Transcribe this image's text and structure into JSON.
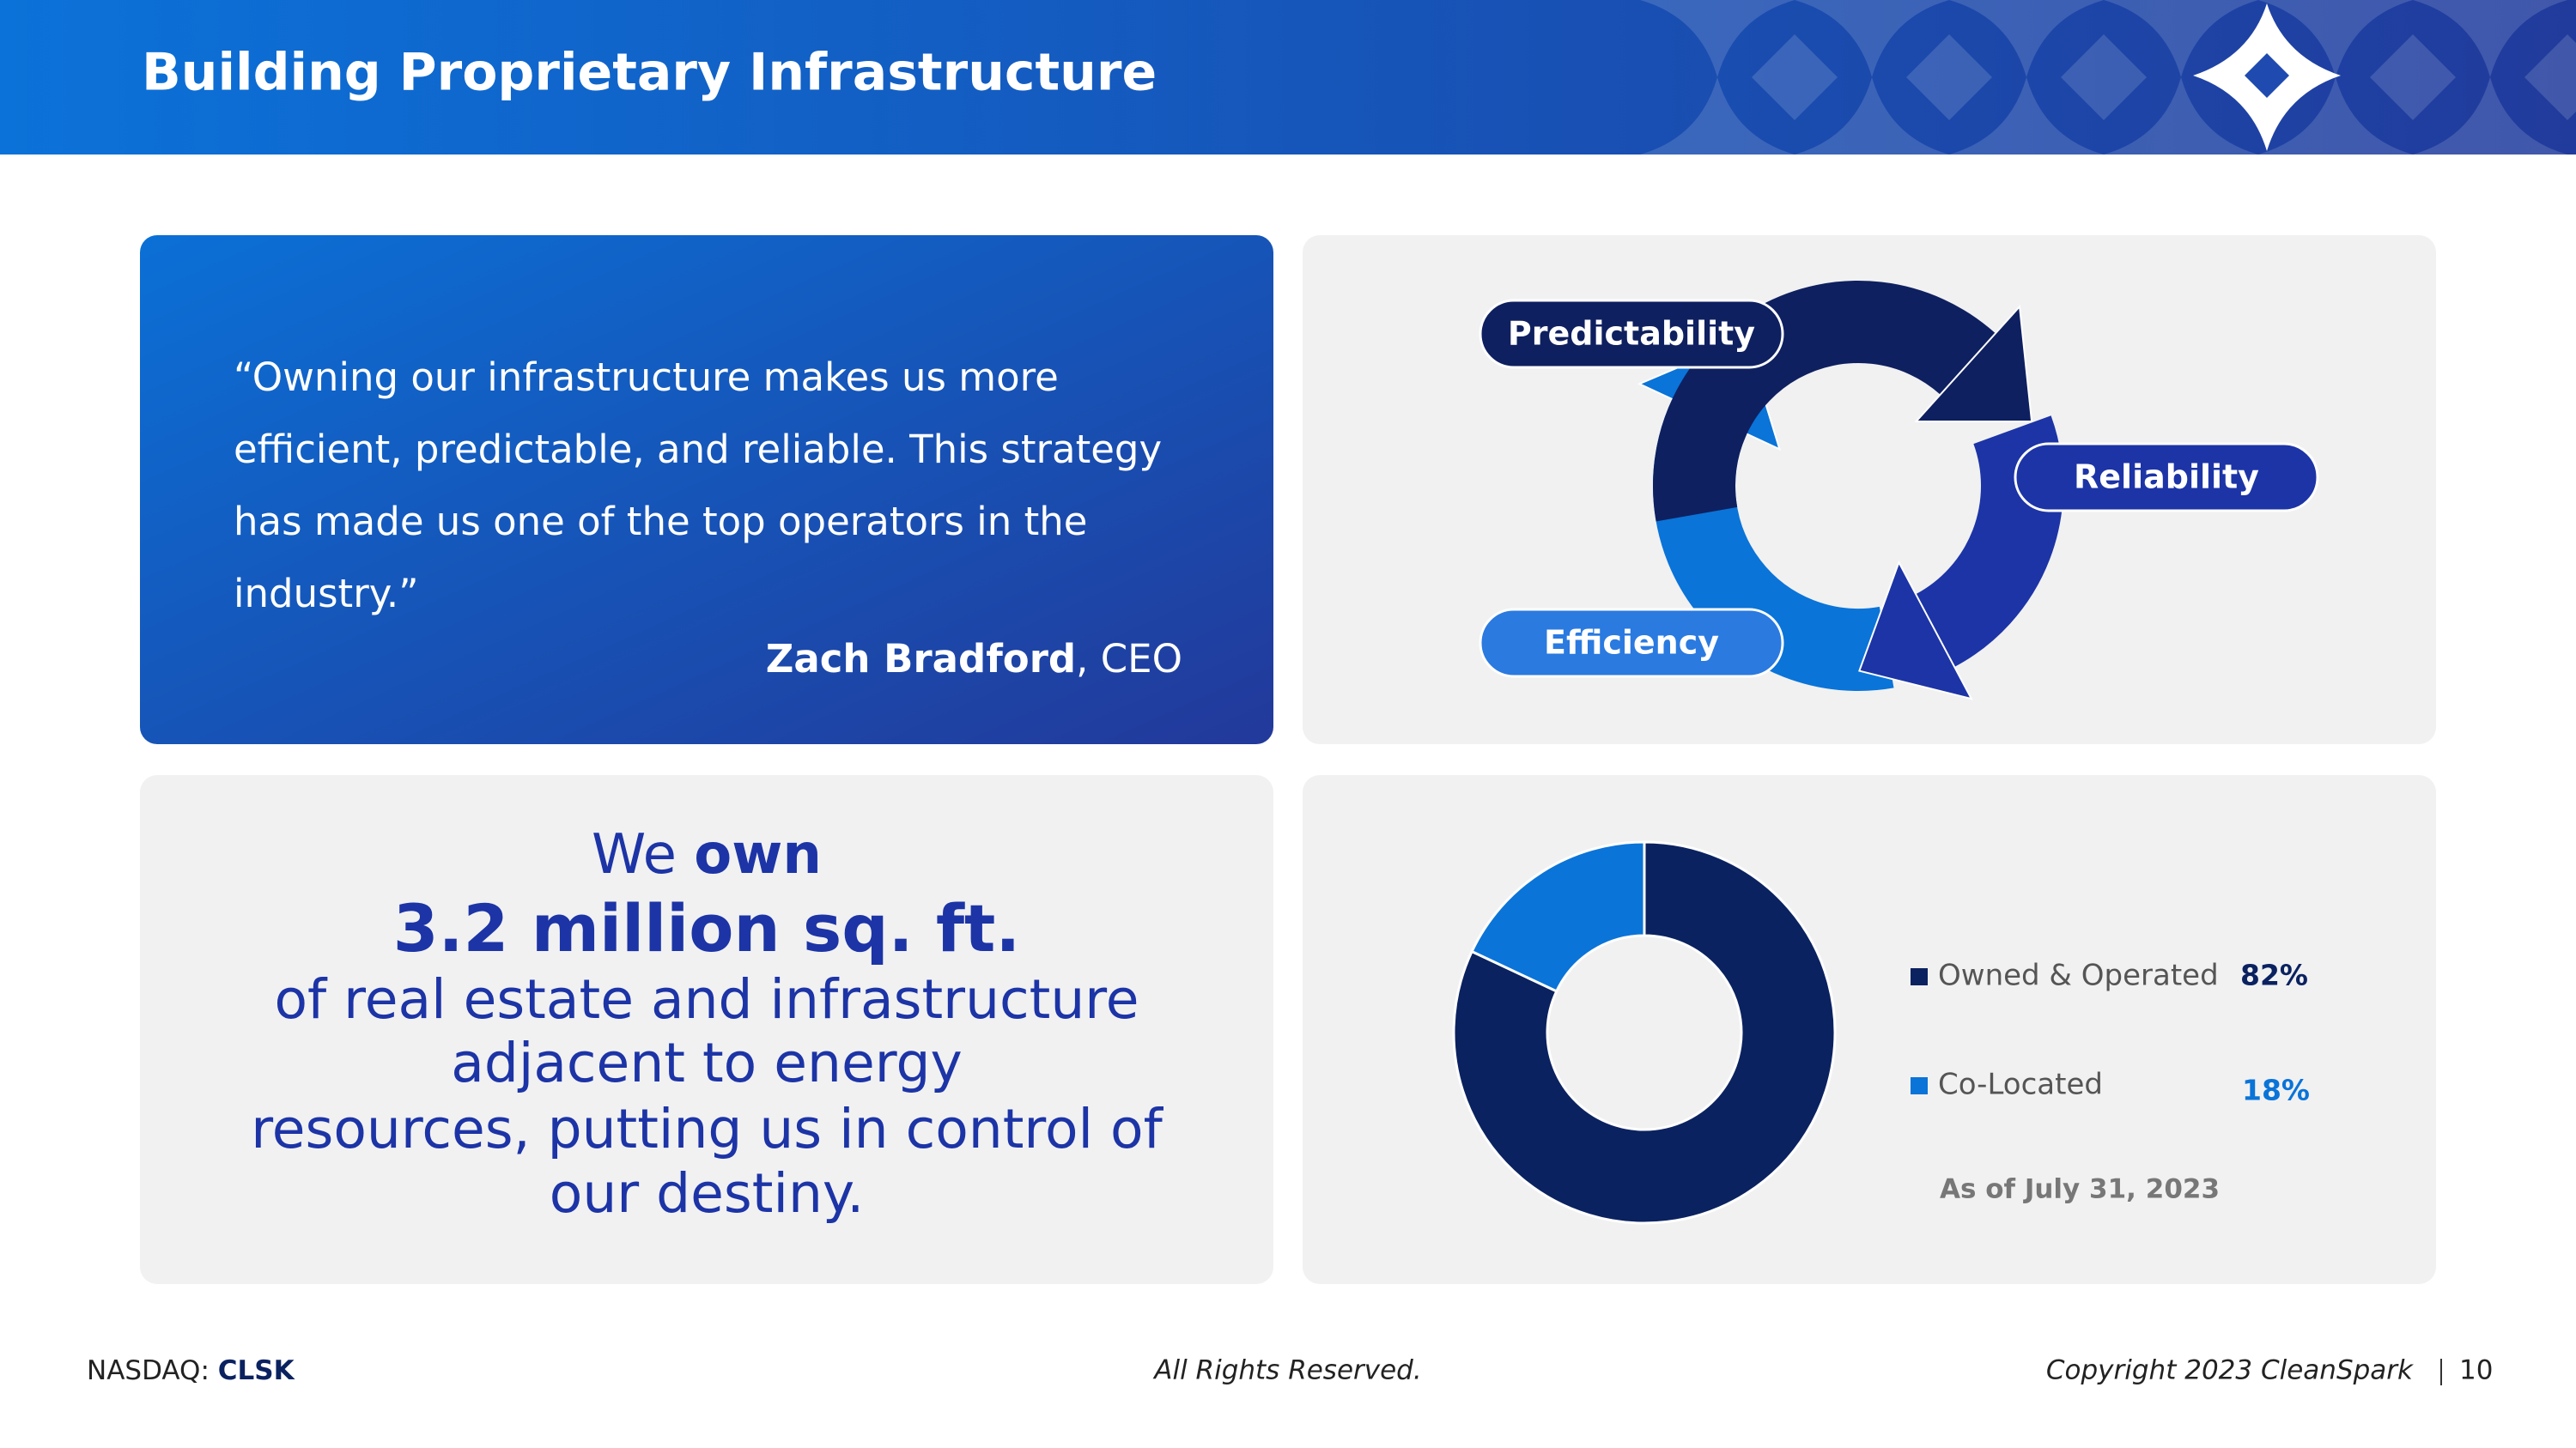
{
  "header": {
    "title": "Building Proprietary Infrastructure"
  },
  "quote": {
    "text": "“Owning our infrastructure makes us more efficient, predictable, and reliable. This strategy has made us one of the top operators in the industry.”",
    "author": "Zach Bradford",
    "role": ", CEO"
  },
  "cycle": {
    "labels": [
      "Predictability",
      "Reliability",
      "Efficiency"
    ]
  },
  "stat": {
    "lead": "We ",
    "lead_bold": "own",
    "figure": "3.2 million sq. ft.",
    "body_lines": [
      "of real estate and infrastructure",
      "adjacent to energy",
      "resources, putting us in control of",
      "our destiny."
    ]
  },
  "chart_data": {
    "type": "pie",
    "categories": [
      "Owned & Operated",
      "Co-Located"
    ],
    "values": [
      82,
      18
    ],
    "value_labels": [
      "82%",
      "18%"
    ],
    "colors": [
      "#0b2260",
      "#0a74d8"
    ],
    "note": "As of July 31, 2023"
  },
  "footer": {
    "exchange": "NASDAQ: ",
    "ticker": "CLSK",
    "center": "All Rights Reserved.",
    "copyright": "Copyright 2023 CleanSpark",
    "page": "10"
  }
}
